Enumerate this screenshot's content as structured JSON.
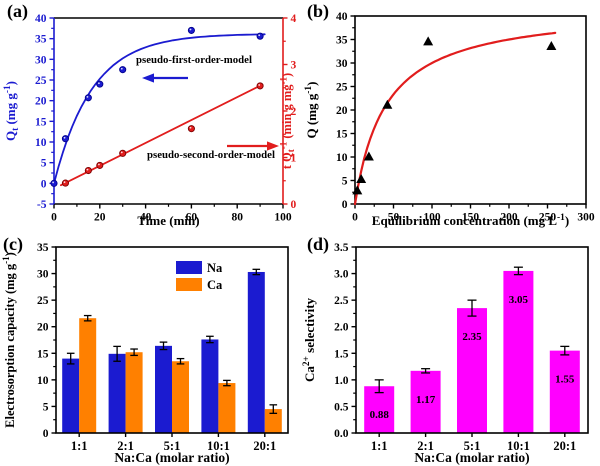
{
  "colors": {
    "blue": "#1b1bd0",
    "blue_edge": "#00008b",
    "red": "#e11d1d",
    "red_edge": "#7a0000",
    "orange": "#ff8000",
    "magenta": "#ff00ff",
    "black": "#000000"
  },
  "panels": [
    {
      "label": "(a)",
      "chart_data": {
        "type": "line",
        "xlabel": "Time (min)",
        "xlim": [
          0,
          100
        ],
        "xticks": [
          0,
          20,
          40,
          60,
          80,
          100
        ],
        "left_axis": {
          "label": "Q_{t} (mg g^{-1})",
          "lim": [
            -5,
            40
          ],
          "ticks": [
            -5,
            0,
            5,
            10,
            15,
            20,
            25,
            30,
            35,
            40
          ],
          "color_key": "blue"
        },
        "right_axis": {
          "label": "t Q_{t}^{-1} (min g mg^{-1})",
          "lim": [
            0,
            4
          ],
          "ticks": [
            0,
            1,
            2,
            3,
            4
          ],
          "color_key": "red"
        },
        "series": [
          {
            "name": "pseudo-first-order-model",
            "axis": "left",
            "color_key": "blue",
            "marker": "circle",
            "x": [
              0,
              5,
              15,
              20,
              30,
              60,
              90
            ],
            "y": [
              0,
              10.8,
              20.7,
              24.0,
              27.5,
              37.0,
              35.6
            ],
            "fit": {
              "kind": "first_order",
              "Qe": 36.2,
              "k": 0.06,
              "range": [
                0,
                92
              ]
            }
          },
          {
            "name": "pseudo-second-order-model",
            "axis": "right",
            "color_key": "red",
            "marker": "circle",
            "x": [
              5,
              15,
              20,
              30,
              60,
              90
            ],
            "y": [
              0.45,
              0.72,
              0.83,
              1.09,
              1.62,
              2.54
            ],
            "fit": {
              "kind": "linear",
              "intercept": 0.33,
              "slope": 0.0246,
              "range": [
                3,
                91
              ]
            }
          }
        ],
        "annotations": [
          {
            "text": "pseudo-first-order-model",
            "arrow": "left",
            "color_key": "blue"
          },
          {
            "text": "pseudo-second-order-model",
            "arrow": "right",
            "color_key": "red"
          }
        ]
      }
    },
    {
      "label": "(b)",
      "chart_data": {
        "type": "scatter",
        "xlabel": "Equilibrium concentration (mg L^{-1})",
        "ylabel": "Q (mg g^{-1})",
        "xlim": [
          0,
          300
        ],
        "xticks": [
          0,
          50,
          100,
          150,
          200,
          250,
          300
        ],
        "ylim": [
          0,
          40
        ],
        "yticks": [
          0,
          5,
          10,
          15,
          20,
          25,
          30,
          35,
          40
        ],
        "points_x": [
          3,
          8,
          18,
          42,
          95,
          255
        ],
        "points_y": [
          2.8,
          5.2,
          10.0,
          21.0,
          34.5,
          33.5
        ],
        "marker": "triangle",
        "marker_color_key": "black",
        "fit": {
          "kind": "langmuir",
          "Qm": 42,
          "b": 0.025,
          "range": [
            0,
            262
          ],
          "color_key": "red"
        }
      }
    },
    {
      "label": "(c)",
      "chart_data": {
        "type": "grouped_bar",
        "xlabel": "Na:Ca (molar ratio)",
        "ylabel": "Electrosorption capacity (mg g^{-1})",
        "ylim": [
          0,
          35
        ],
        "yticks": [
          0,
          5,
          10,
          15,
          20,
          25,
          30,
          35
        ],
        "categories": [
          "1:1",
          "2:1",
          "5:1",
          "10:1",
          "20:1"
        ],
        "series": [
          {
            "name": "Na",
            "color_key": "blue",
            "values": [
              14.0,
              14.9,
              16.4,
              17.6,
              30.3
            ],
            "errors": [
              1.0,
              1.4,
              0.7,
              0.6,
              0.5
            ]
          },
          {
            "name": "Ca",
            "color_key": "orange",
            "values": [
              21.6,
              15.2,
              13.5,
              9.4,
              4.5
            ],
            "errors": [
              0.5,
              0.6,
              0.5,
              0.5,
              0.8
            ]
          }
        ],
        "legend": [
          "Na",
          "Ca"
        ]
      }
    },
    {
      "label": "(d)",
      "chart_data": {
        "type": "bar",
        "xlabel": "Na:Ca (molar ratio)",
        "ylabel": "Ca^{2+} selectivity",
        "ylim": [
          0,
          3.5
        ],
        "yticks": [
          0,
          0.5,
          1,
          1.5,
          2,
          2.5,
          3,
          3.5
        ],
        "ytick_decimals": 1,
        "categories": [
          "1:1",
          "2:1",
          "5:1",
          "10:1",
          "20:1"
        ],
        "values": [
          0.88,
          1.17,
          2.35,
          3.05,
          1.55
        ],
        "errors": [
          0.12,
          0.04,
          0.15,
          0.07,
          0.08
        ],
        "value_labels": [
          "0.88",
          "1.17",
          "2.35",
          "3.05",
          "1.55"
        ],
        "bar_color_key": "magenta"
      }
    }
  ]
}
